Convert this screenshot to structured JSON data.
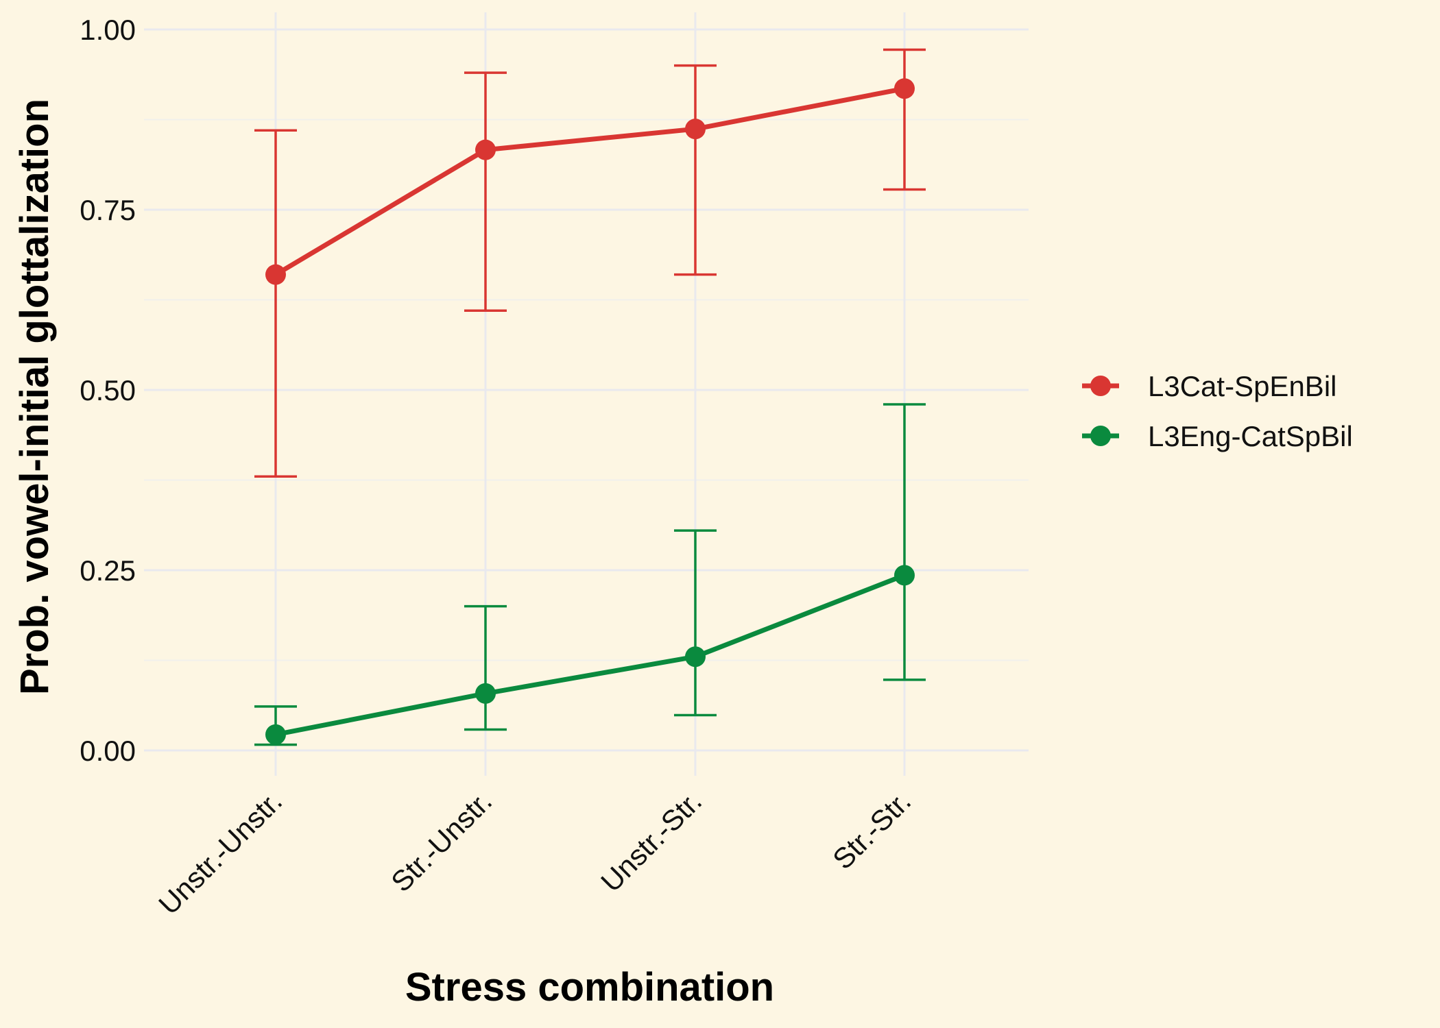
{
  "chart_data": {
    "type": "line",
    "title": "",
    "xlabel": "Stress combination",
    "ylabel": "Prob. vowel-initial glottalization",
    "categories": [
      "Unstr.-Unstr.",
      "Str.-Unstr.",
      "Unstr.-Str.",
      "Str.-Str."
    ],
    "ylim": [
      0,
      1
    ],
    "yticks": [
      "0.00",
      "0.25",
      "0.50",
      "0.75",
      "1.00"
    ],
    "grid": true,
    "legend_position": "right",
    "series": [
      {
        "name": "L3Cat-SpEnBil",
        "color": "#d93632",
        "values": [
          0.66,
          0.833,
          0.862,
          0.918
        ],
        "lower": [
          0.38,
          0.61,
          0.66,
          0.778
        ],
        "upper": [
          0.86,
          0.94,
          0.95,
          0.972
        ]
      },
      {
        "name": "L3Eng-CatSpBil",
        "color": "#0a8a3e",
        "values": [
          0.022,
          0.079,
          0.13,
          0.243
        ],
        "lower": [
          0.008,
          0.029,
          0.049,
          0.098
        ],
        "upper": [
          0.061,
          0.2,
          0.305,
          0.48
        ]
      }
    ]
  }
}
